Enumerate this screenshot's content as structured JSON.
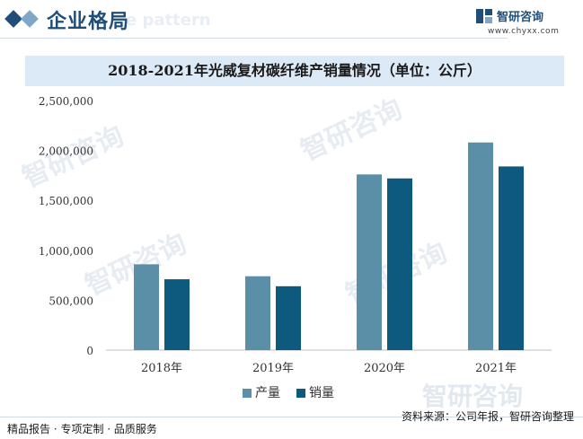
{
  "header": {
    "title": "企业格局",
    "background_text": "e pattern",
    "logo_name": "智研咨询",
    "logo_url": "www.chyxx.com"
  },
  "watermark": {
    "text": "智研咨询"
  },
  "footer": {
    "left": "精品报告 · 专项定制 · 品质服务",
    "right": "资料来源：公司年报，智研咨询整理"
  },
  "colors": {
    "production": "#5b8fa8",
    "sales": "#0e5a7e",
    "title_bar": "#dceaf7",
    "brand": "#1f4e79"
  },
  "chart_data": {
    "type": "bar",
    "title": "2018-2021年光威复材碳纤维产销量情况（单位：公斤）",
    "categories": [
      "2018年",
      "2019年",
      "2020年",
      "2021年"
    ],
    "series": [
      {
        "name": "产量",
        "values": [
          860000,
          740000,
          1760000,
          2080000
        ]
      },
      {
        "name": "销量",
        "values": [
          710000,
          640000,
          1720000,
          1840000
        ]
      }
    ],
    "ylim": [
      0,
      2500000
    ],
    "yticks": [
      0,
      500000,
      1000000,
      1500000,
      2000000,
      2500000
    ],
    "ytick_labels": [
      "0",
      "500,000",
      "1,000,000",
      "1,500,000",
      "2,000,000",
      "2,500,000"
    ],
    "grid": false,
    "legend_position": "bottom"
  }
}
